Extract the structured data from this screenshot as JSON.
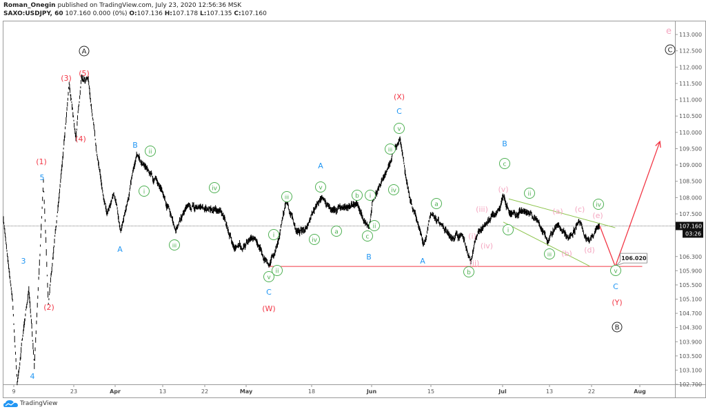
{
  "header": {
    "author": "Roman_Onegin",
    "published_text": "published on TradingView.com, July 23, 2020 12:56:36 MSK",
    "symbol": "SAXO:USDJPY, 60",
    "quote": "107.160 0.000 (0%)",
    "open_label": "O:",
    "open": "107.136",
    "high_label": "H:",
    "high": "107.178",
    "low_label": "L:",
    "low": "107.135",
    "close_label": "C:",
    "close": "107.160"
  },
  "branding": {
    "logo_text": "TradingView",
    "logo_icon": "tradingview-cloud-icon"
  },
  "chart_data": {
    "type": "line",
    "symbol": "SAXO:USDJPY",
    "interval": "60",
    "grid": false,
    "colors": {
      "price": "#000000",
      "red": "#f23645",
      "blue": "#2196f3",
      "green": "#4caf50",
      "pink": "#f4a6c0",
      "black": "#222222",
      "channel": "#8bc34a"
    },
    "current_price": 107.16,
    "current_price_label": "107.160",
    "countdown_label": "03:26",
    "y_ticks": [
      "113.000",
      "112.500",
      "112.000",
      "111.500",
      "111.000",
      "110.500",
      "110.000",
      "109.500",
      "109.000",
      "108.500",
      "108.000",
      "107.500",
      "106.300",
      "105.900",
      "105.500",
      "105.100",
      "104.700",
      "104.300",
      "103.900",
      "103.500",
      "103.100",
      "102.700"
    ],
    "x_ticks": [
      {
        "label": "9",
        "date": "2020-03-09",
        "major": false
      },
      {
        "label": "23",
        "date": "2020-03-23",
        "major": false
      },
      {
        "label": "Apr",
        "date": "2020-04-01",
        "major": true
      },
      {
        "label": "13",
        "date": "2020-04-13",
        "major": false
      },
      {
        "label": "22",
        "date": "2020-04-22",
        "major": false
      },
      {
        "label": "May",
        "date": "2020-05-01",
        "major": true
      },
      {
        "label": "18",
        "date": "2020-05-18",
        "major": false
      },
      {
        "label": "Jun",
        "date": "2020-06-01",
        "major": true
      },
      {
        "label": "15",
        "date": "2020-06-15",
        "major": false
      },
      {
        "label": "Jul",
        "date": "2020-07-01",
        "major": true
      },
      {
        "label": "13",
        "date": "2020-07-13",
        "major": false
      },
      {
        "label": "22",
        "date": "2020-07-22",
        "major": false
      },
      {
        "label": "Aug",
        "date": "2020-08-01",
        "major": true
      }
    ],
    "price_path": [
      [
        "2020-03-06T14:00",
        107.34
      ],
      [
        "2020-03-08T17:00",
        105.07
      ],
      [
        "2020-03-09T19:00",
        102.74
      ],
      [
        "2020-03-11T10:00",
        104.39
      ],
      [
        "2020-03-12T12:00",
        105.36
      ],
      [
        "2020-03-13T19:00",
        103.22
      ],
      [
        "2020-03-15T22:00",
        108.52
      ],
      [
        "2020-03-17T02:00",
        104.97
      ],
      [
        "2020-03-19T12:00",
        107.92
      ],
      [
        "2020-03-21T22:00",
        111.52
      ],
      [
        "2020-03-23T11:00",
        109.83
      ],
      [
        "2020-03-24T16:00",
        111.73
      ],
      [
        "2020-03-26T04:00",
        111.62
      ],
      [
        "2020-03-27T23:00",
        109.4
      ],
      [
        "2020-03-30T05:00",
        107.5
      ],
      [
        "2020-03-31T17:00",
        108.13
      ],
      [
        "2020-04-02T10:00",
        107.01
      ],
      [
        "2020-04-06T10:00",
        109.3
      ],
      [
        "2020-04-08T12:00",
        108.98
      ],
      [
        "2020-04-12T19:00",
        108.24
      ],
      [
        "2020-04-15T19:00",
        107.01
      ],
      [
        "2020-04-18T00:00",
        107.71
      ],
      [
        "2020-04-20T22:00",
        107.71
      ],
      [
        "2020-04-25T11:00",
        107.61
      ],
      [
        "2020-04-28T11:00",
        106.53
      ],
      [
        "2020-05-03T07:00",
        106.82
      ],
      [
        "2020-05-06T22:00",
        106.04
      ],
      [
        "2020-05-09T14:00",
        106.82
      ],
      [
        "2020-05-11T10:00",
        107.92
      ],
      [
        "2020-05-14T00:00",
        107.01
      ],
      [
        "2020-05-16T17:00",
        107.11
      ],
      [
        "2020-05-20T10:00",
        108.03
      ],
      [
        "2020-05-22T12:00",
        107.61
      ],
      [
        "2020-05-25T17:00",
        107.71
      ],
      [
        "2020-05-28T12:00",
        107.82
      ],
      [
        "2020-05-31T10:00",
        107.11
      ],
      [
        "2020-06-01T05:00",
        107.92
      ],
      [
        "2020-06-04T10:00",
        108.77
      ],
      [
        "2020-06-07T17:00",
        109.83
      ],
      [
        "2020-06-10T02:00",
        107.92
      ],
      [
        "2020-06-11T17:00",
        107.31
      ],
      [
        "2020-06-13T07:00",
        106.63
      ],
      [
        "2020-06-15T00:00",
        107.5
      ],
      [
        "2020-06-17T07:00",
        107.21
      ],
      [
        "2020-06-19T14:00",
        106.82
      ],
      [
        "2020-06-21T22:00",
        106.92
      ],
      [
        "2020-06-23T22:00",
        106.14
      ],
      [
        "2020-06-25T00:00",
        106.82
      ],
      [
        "2020-06-26T14:00",
        107.11
      ],
      [
        "2020-06-29T14:00",
        107.5
      ],
      [
        "2020-07-01T04:00",
        108.07
      ],
      [
        "2020-07-02T22:00",
        107.5
      ],
      [
        "2020-07-06T10:00",
        107.61
      ],
      [
        "2020-07-10T00:00",
        107.31
      ],
      [
        "2020-07-12T14:00",
        106.68
      ],
      [
        "2020-07-14T22:00",
        107.21
      ],
      [
        "2020-07-17T02:00",
        106.82
      ],
      [
        "2020-07-19T07:00",
        107.31
      ],
      [
        "2020-07-21T14:00",
        106.73
      ],
      [
        "2020-07-23T00:00",
        107.11
      ],
      [
        "2020-07-23T17:00",
        107.16
      ]
    ],
    "support_line": {
      "price": 106.02,
      "from": "2020-05-07T00:00",
      "to": "2020-08-01T12:00"
    },
    "projection": {
      "points": [
        [
          "2020-07-23T17:00",
          107.16
        ],
        [
          "2020-07-26T22:00",
          106.02
        ],
        [
          "2020-08-05T04:00",
          109.72
        ]
      ],
      "target_label": "106.020"
    },
    "channel_lines": [
      {
        "from": [
          "2020-07-02T14:00",
          107.96
        ],
        "to": [
          "2020-07-26T22:00",
          107.11
        ]
      },
      {
        "from": [
          "2020-07-01T04:00",
          107.27
        ],
        "to": [
          "2020-07-21T14:00",
          106.03
        ]
      }
    ],
    "annotations": [
      {
        "text": "A",
        "style": "black-circle"
      },
      {
        "text": "C",
        "style": "black-circle"
      },
      {
        "text": "B",
        "style": "black-circle"
      },
      {
        "text": "e",
        "style": "pink-large"
      },
      {
        "text": "(3)",
        "style": "red"
      },
      {
        "text": "(5)",
        "style": "red"
      },
      {
        "text": "(4)",
        "style": "red"
      },
      {
        "text": "(1)",
        "style": "red"
      },
      {
        "text": "(2)",
        "style": "red"
      },
      {
        "text": "(X)",
        "style": "red"
      },
      {
        "text": "(W)",
        "style": "red"
      },
      {
        "text": "(Y)",
        "style": "red"
      },
      {
        "text": "5",
        "style": "blue"
      },
      {
        "text": "3",
        "style": "blue"
      },
      {
        "text": "4",
        "style": "blue"
      },
      {
        "text": "A",
        "style": "blue"
      },
      {
        "text": "B",
        "style": "blue"
      },
      {
        "text": "C",
        "style": "blue"
      },
      {
        "text": "A",
        "style": "blue"
      },
      {
        "text": "B",
        "style": "blue"
      },
      {
        "text": "C",
        "style": "blue"
      },
      {
        "text": "A",
        "style": "blue"
      },
      {
        "text": "B",
        "style": "blue"
      },
      {
        "text": "C",
        "style": "blue"
      },
      {
        "text": "ii",
        "style": "green-circle"
      },
      {
        "text": "i",
        "style": "green-circle"
      },
      {
        "text": "iii",
        "style": "green-circle"
      },
      {
        "text": "iv",
        "style": "green-circle"
      },
      {
        "text": "i",
        "style": "green-circle"
      },
      {
        "text": "v",
        "style": "green-circle"
      },
      {
        "text": "ii",
        "style": "green-circle"
      },
      {
        "text": "iii",
        "style": "green-circle"
      },
      {
        "text": "iv",
        "style": "green-circle"
      },
      {
        "text": "v",
        "style": "green-circle"
      },
      {
        "text": "a",
        "style": "green-circle"
      },
      {
        "text": "b",
        "style": "green-circle"
      },
      {
        "text": "i",
        "style": "green-circle"
      },
      {
        "text": "c",
        "style": "green-circle"
      },
      {
        "text": "ii",
        "style": "green-circle"
      },
      {
        "text": "iii",
        "style": "green-circle"
      },
      {
        "text": "iv",
        "style": "green-circle"
      },
      {
        "text": "v",
        "style": "green-circle"
      },
      {
        "text": "a",
        "style": "green-circle"
      },
      {
        "text": "c",
        "style": "green-circle"
      },
      {
        "text": "ii",
        "style": "green-circle"
      },
      {
        "text": "b",
        "style": "green-circle"
      },
      {
        "text": "i",
        "style": "green-circle"
      },
      {
        "text": "iii",
        "style": "green-circle"
      },
      {
        "text": "iv",
        "style": "green-circle"
      },
      {
        "text": "v",
        "style": "green-circle"
      },
      {
        "text": "(v)",
        "style": "pink"
      },
      {
        "text": "(iii)",
        "style": "pink"
      },
      {
        "text": "(iv)",
        "style": "pink"
      },
      {
        "text": "(i)",
        "style": "pink"
      },
      {
        "text": "(ii)",
        "style": "pink"
      },
      {
        "text": "(a)",
        "style": "pink"
      },
      {
        "text": "(c)",
        "style": "pink"
      },
      {
        "text": "(e)",
        "style": "pink"
      },
      {
        "text": "(b)",
        "style": "pink"
      },
      {
        "text": "(d)",
        "style": "pink"
      }
    ]
  }
}
